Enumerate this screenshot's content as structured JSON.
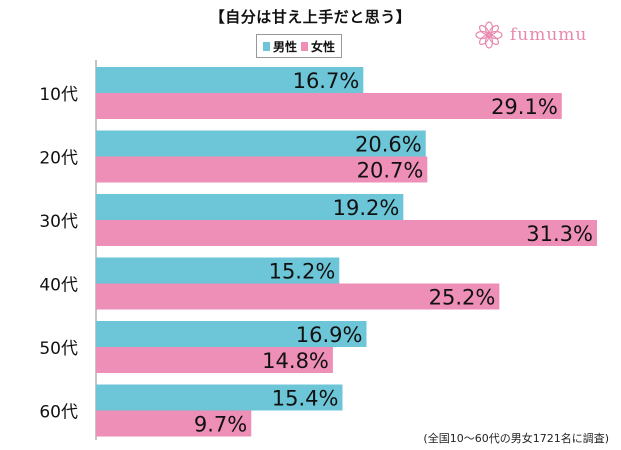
{
  "title": "【自分は甘え上手だと思う】",
  "brand": {
    "name": "fumumu",
    "icon": "flower-logo-icon",
    "color": "#e889b0"
  },
  "footnote": "(全国10〜60代の男女1721名に調査)",
  "colors": {
    "male": "#6cc6d8",
    "female": "#ee8fb7"
  },
  "chart_data": {
    "type": "bar",
    "orientation": "horizontal",
    "title": "【自分は甘え上手だと思う】",
    "categories": [
      "10代",
      "20代",
      "30代",
      "40代",
      "50代",
      "60代"
    ],
    "series": [
      {
        "name": "男性",
        "values": [
          16.7,
          20.6,
          19.2,
          15.2,
          16.9,
          15.4
        ],
        "labels": [
          "16.7%",
          "20.6%",
          "19.2%",
          "15.2%",
          "16.9%",
          "15.4%"
        ]
      },
      {
        "name": "女性",
        "values": [
          29.1,
          20.7,
          31.3,
          25.2,
          14.8,
          9.7
        ],
        "labels": [
          "29.1%",
          "20.7%",
          "31.3%",
          "25.2%",
          "14.8%",
          "9.7%"
        ]
      }
    ],
    "xlim": [
      0,
      31.3
    ],
    "legend_position": "top-center",
    "grid": false
  }
}
